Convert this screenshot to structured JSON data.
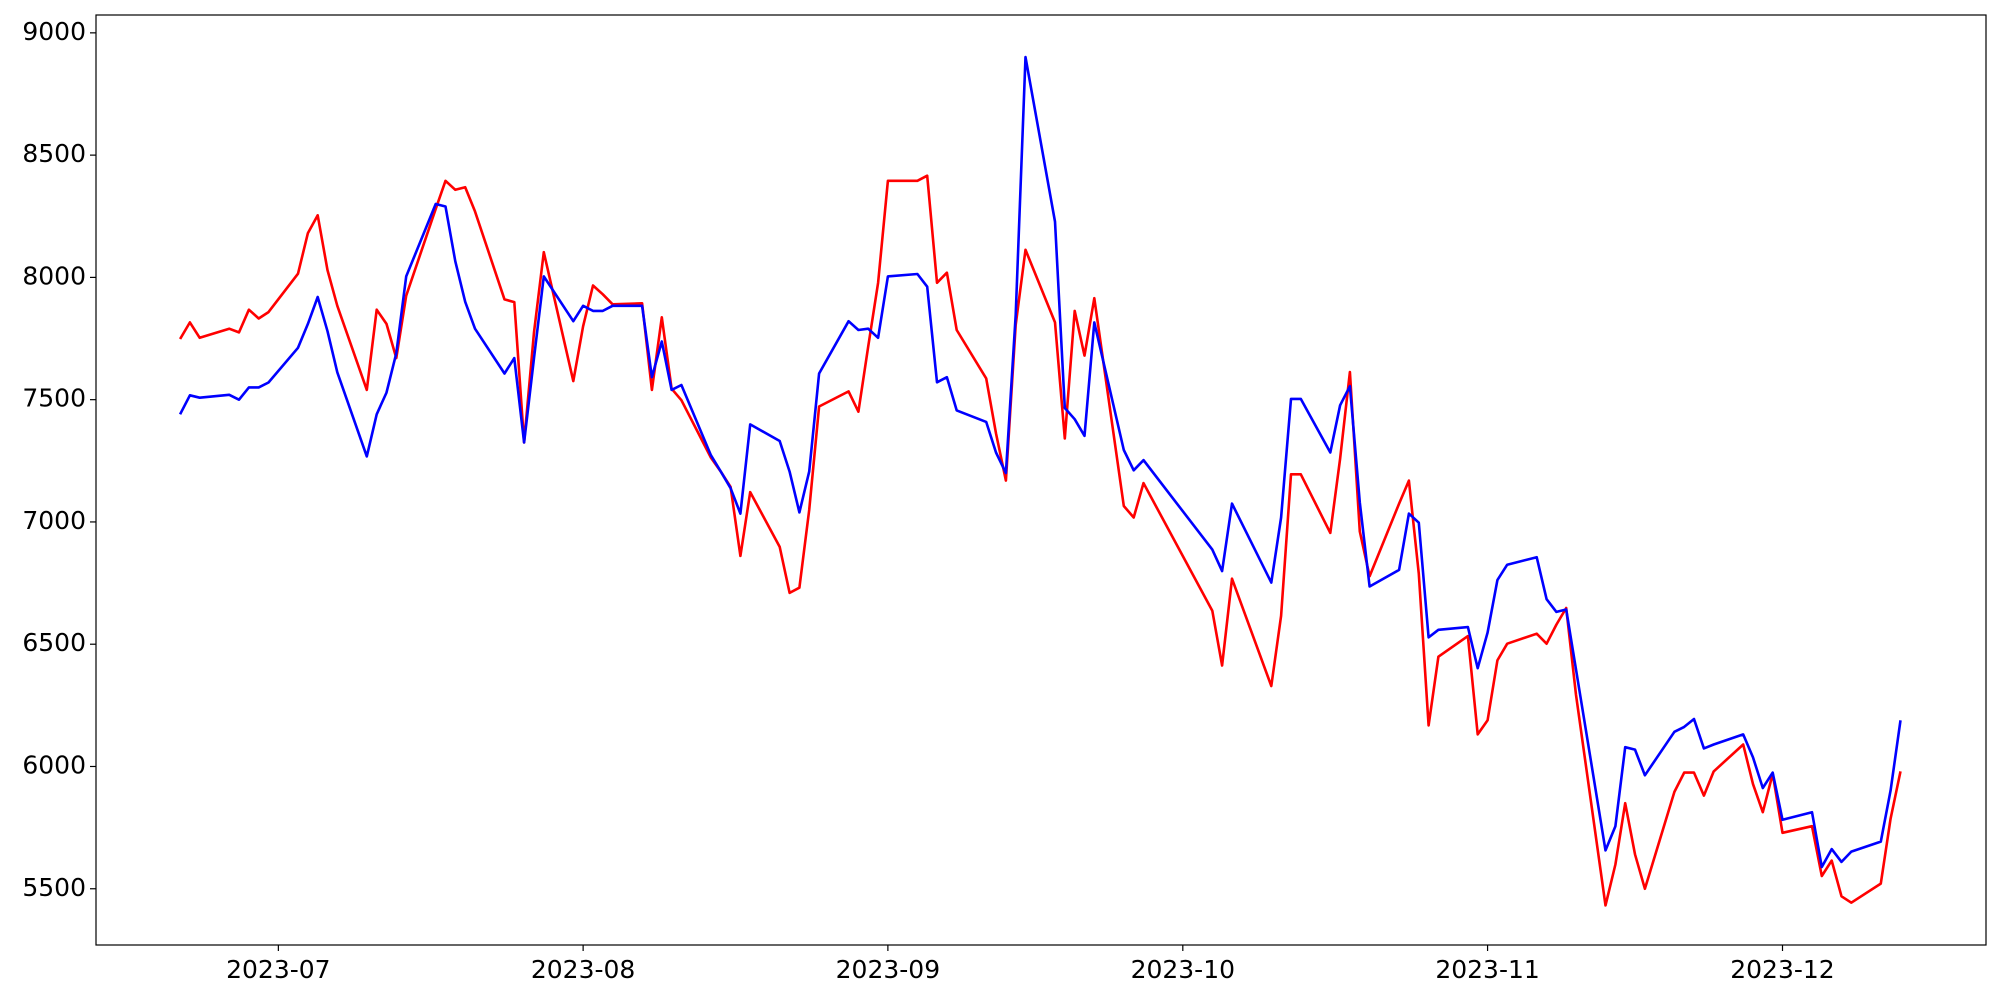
{
  "chart_data": {
    "type": "line",
    "x": [
      172,
      173,
      174,
      177,
      178,
      179,
      180,
      181,
      184,
      185,
      186,
      187,
      188,
      191,
      192,
      193,
      194,
      195,
      198,
      199,
      200,
      201,
      202,
      205,
      206,
      207,
      208,
      209,
      212,
      213,
      214,
      215,
      216,
      219,
      220,
      221,
      222,
      223,
      226,
      227,
      228,
      229,
      230,
      233,
      234,
      235,
      236,
      237,
      240,
      241,
      242,
      243,
      244,
      247,
      248,
      249,
      250,
      251,
      254,
      255,
      256,
      257,
      258,
      261,
      262,
      263,
      264,
      265,
      268,
      269,
      270,
      277,
      278,
      279,
      283,
      284,
      285,
      286,
      289,
      290,
      291,
      292,
      293,
      296,
      297,
      298,
      299,
      300,
      303,
      304,
      305,
      306,
      307,
      310,
      311,
      312,
      313,
      314,
      317,
      318,
      319,
      320,
      321,
      324,
      325,
      326,
      327,
      328,
      331,
      332,
      333,
      334,
      335,
      338,
      339,
      340,
      341,
      342,
      345,
      346,
      347
    ],
    "series": [
      {
        "color": "red",
        "values": [
          7748,
          7816,
          7753,
          7790,
          7775,
          7868,
          7832,
          7858,
          8015,
          8181,
          8254,
          8030,
          7884,
          7540,
          7868,
          7810,
          7670,
          7925,
          8280,
          8395,
          8358,
          8369,
          8270,
          7910,
          7899,
          7325,
          7775,
          8103,
          7576,
          7800,
          7967,
          7931,
          7890,
          7894,
          7540,
          7837,
          7545,
          7498,
          7263,
          7206,
          7143,
          6861,
          7122,
          6898,
          6710,
          6731,
          7049,
          7472,
          7534,
          7451,
          7717,
          7978,
          8395,
          8395,
          8416,
          7978,
          8019,
          7785,
          7587,
          7362,
          7169,
          7806,
          8113,
          7816,
          7341,
          7863,
          7680,
          7915,
          7065,
          7018,
          7159,
          6637,
          6413,
          6768,
          6329,
          6616,
          7195,
          7195,
          6955,
          7258,
          7613,
          6961,
          6778,
          7075,
          7169,
          6788,
          6168,
          6449,
          6533,
          6131,
          6189,
          6434,
          6502,
          6543,
          6502,
          6580,
          6648,
          6293,
          5432,
          5599,
          5850,
          5641,
          5500,
          5896,
          5975,
          5975,
          5881,
          5980,
          6090,
          5928,
          5813,
          5970,
          5729,
          5756,
          5552,
          5615,
          5469,
          5443,
          5521,
          5787,
          5980
        ]
      },
      {
        "color": "blue",
        "values": [
          7440,
          7518,
          7508,
          7520,
          7500,
          7550,
          7550,
          7570,
          7712,
          7810,
          7920,
          7780,
          7612,
          7268,
          7440,
          7529,
          7690,
          8004,
          8300,
          8290,
          8066,
          7900,
          7790,
          7607,
          7670,
          7325,
          7670,
          8004,
          7821,
          7884,
          7863,
          7863,
          7884,
          7884,
          7592,
          7738,
          7540,
          7560,
          7273,
          7206,
          7138,
          7034,
          7399,
          7331,
          7206,
          7039,
          7206,
          7607,
          7821,
          7785,
          7790,
          7753,
          8004,
          8014,
          7962,
          7571,
          7592,
          7456,
          7409,
          7284,
          7200,
          7847,
          8901,
          8228,
          7466,
          7420,
          7352,
          7816,
          7294,
          7211,
          7253,
          6887,
          6799,
          7075,
          6752,
          7018,
          7503,
          7503,
          7284,
          7477,
          7555,
          7080,
          6736,
          6804,
          7034,
          6997,
          6528,
          6559,
          6570,
          6402,
          6548,
          6762,
          6825,
          6856,
          6684,
          6632,
          6642,
          6397,
          5657,
          5756,
          6079,
          6069,
          5964,
          6142,
          6162,
          6194,
          6074,
          6090,
          6131,
          6037,
          5912,
          5975,
          5782,
          5813,
          5589,
          5662,
          5610,
          5652,
          5693,
          5902,
          6189
        ]
      }
    ],
    "xlim": [
      163.45,
      355.7
    ],
    "xticks": [
      {
        "value": 182,
        "label": "2023-07"
      },
      {
        "value": 213,
        "label": "2023-08"
      },
      {
        "value": 244,
        "label": "2023-09"
      },
      {
        "value": 274,
        "label": "2023-10"
      },
      {
        "value": 305,
        "label": "2023-11"
      },
      {
        "value": 335,
        "label": "2023-12"
      }
    ],
    "ylim": [
      5270,
      9073
    ],
    "yticks": [
      5500,
      6000,
      6500,
      7000,
      7500,
      8000,
      8500,
      9000
    ],
    "grid": false
  }
}
